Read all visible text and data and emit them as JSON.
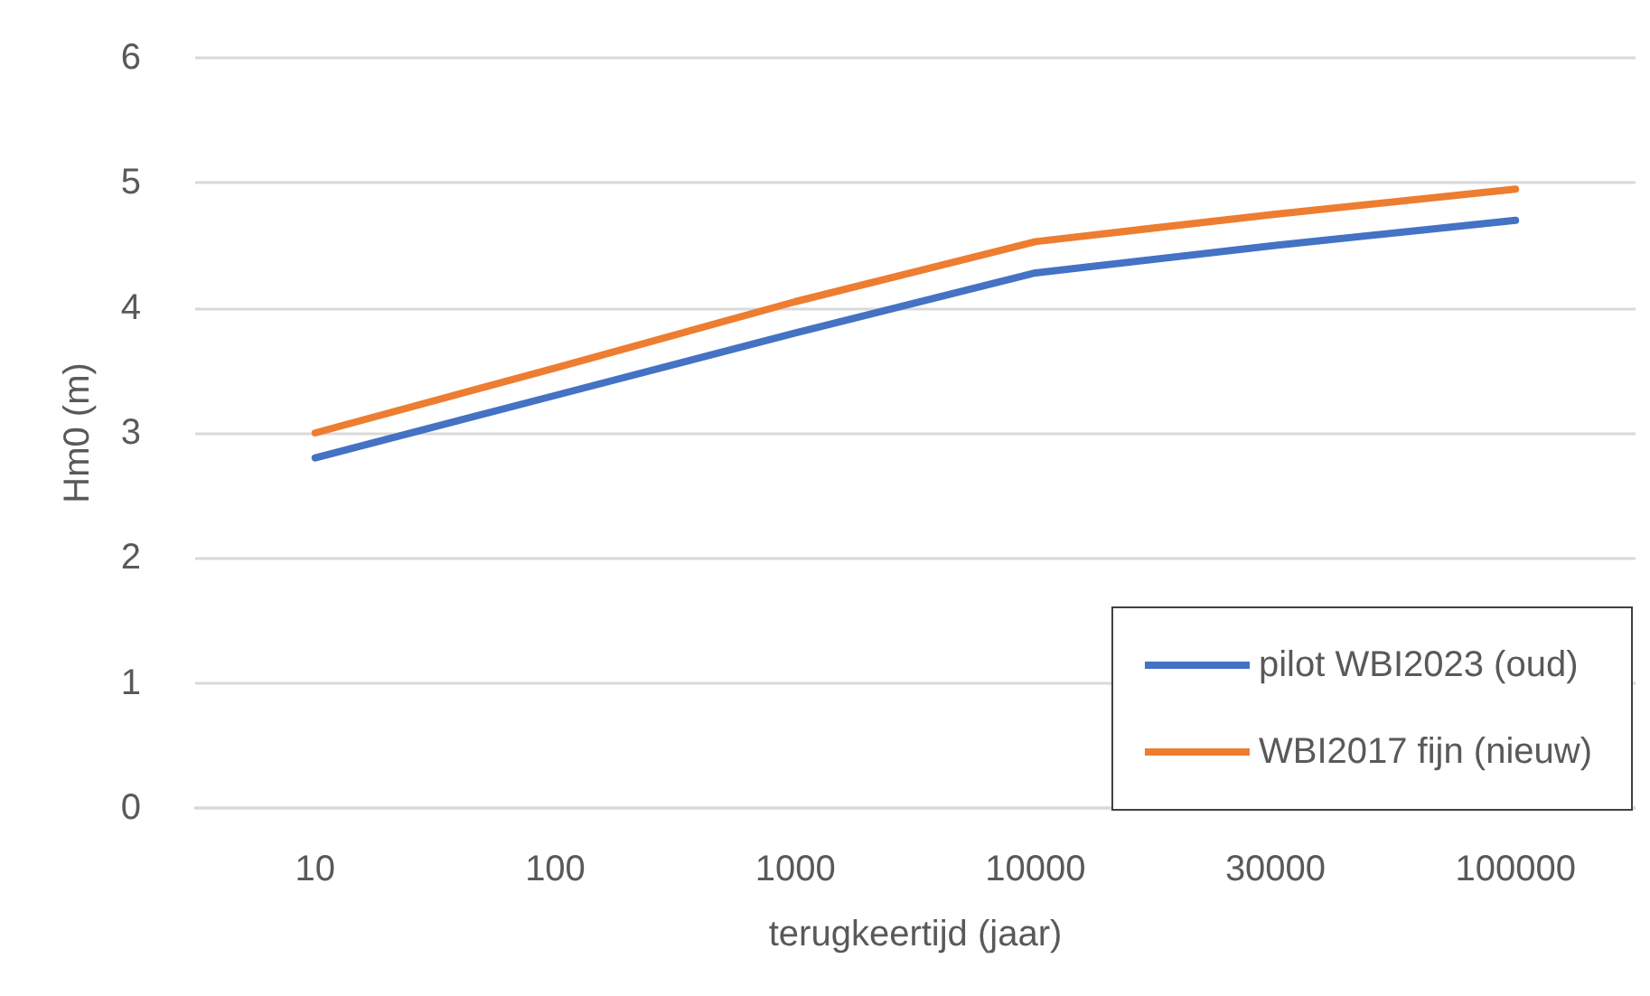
{
  "chart_data": {
    "type": "line",
    "xlabel": "terugkeertijd (jaar)",
    "ylabel": "Hm0 (m)",
    "categories": [
      "10",
      "100",
      "1000",
      "10000",
      "30000",
      "100000"
    ],
    "series": [
      {
        "name": "pilot WBI2023 (oud)",
        "color": "#4472c4",
        "values": [
          2.8,
          3.3,
          3.8,
          4.28,
          4.5,
          4.7
        ]
      },
      {
        "name": "WBI2017 fijn (nieuw)",
        "color": "#ed7d31",
        "values": [
          3.0,
          3.52,
          4.05,
          4.53,
          4.75,
          4.95
        ]
      }
    ],
    "ylim": [
      0,
      6
    ],
    "yticks": [
      0,
      1,
      2,
      3,
      4,
      5,
      6
    ],
    "grid": "y",
    "legend": "bottom right",
    "marker": "none",
    "line_style": "solid"
  }
}
